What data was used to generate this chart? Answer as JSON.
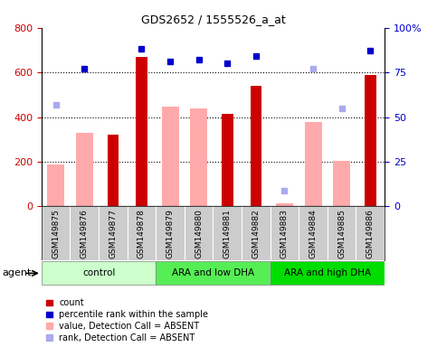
{
  "title": "GDS2652 / 1555526_a_at",
  "samples": [
    "GSM149875",
    "GSM149876",
    "GSM149877",
    "GSM149878",
    "GSM149879",
    "GSM149880",
    "GSM149881",
    "GSM149882",
    "GSM149883",
    "GSM149884",
    "GSM149885",
    "GSM149886"
  ],
  "groups": [
    {
      "label": "control",
      "start": 0,
      "end": 3,
      "color": "#ccffcc"
    },
    {
      "label": "ARA and low DHA",
      "start": 4,
      "end": 7,
      "color": "#55ee55"
    },
    {
      "label": "ARA and high DHA",
      "start": 8,
      "end": 11,
      "color": "#00dd00"
    }
  ],
  "count_values": [
    null,
    null,
    320,
    670,
    null,
    null,
    415,
    540,
    null,
    null,
    null,
    590
  ],
  "absent_value": [
    190,
    330,
    null,
    null,
    445,
    440,
    null,
    null,
    15,
    380,
    205,
    null
  ],
  "percentile_rank": [
    null,
    77,
    null,
    88,
    81,
    82,
    80,
    84,
    null,
    null,
    null,
    87
  ],
  "absent_rank": [
    57,
    null,
    null,
    null,
    null,
    null,
    null,
    null,
    9,
    77,
    55,
    null
  ],
  "ylim_left": [
    0,
    800
  ],
  "ylim_right": [
    0,
    100
  ],
  "yticks_left": [
    0,
    200,
    400,
    600,
    800
  ],
  "yticks_right": [
    0,
    25,
    50,
    75,
    100
  ],
  "yticklabels_right": [
    "0",
    "25",
    "50",
    "75",
    "100%"
  ],
  "color_count": "#cc0000",
  "color_absent_value": "#ffaaaa",
  "color_percentile": "#0000cc",
  "color_absent_rank": "#aaaaee",
  "legend_items": [
    {
      "label": "count",
      "color": "#cc0000"
    },
    {
      "label": "percentile rank within the sample",
      "color": "#0000cc"
    },
    {
      "label": "value, Detection Call = ABSENT",
      "color": "#ffaaaa"
    },
    {
      "label": "rank, Detection Call = ABSENT",
      "color": "#aaaaee"
    }
  ],
  "agent_label": "agent",
  "background_color": "#ffffff",
  "sample_bg_color": "#cccccc"
}
